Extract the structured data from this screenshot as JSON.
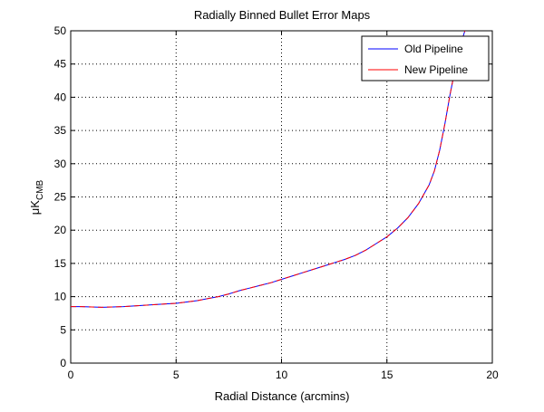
{
  "chart_data": {
    "type": "line",
    "title": "Radially Binned Bullet Error Maps",
    "xlabel": "Radial Distance (arcmins)",
    "ylabel_main": "μK",
    "ylabel_sub": "CMB",
    "xlim": [
      0,
      20
    ],
    "ylim": [
      0,
      50
    ],
    "xticks": [
      0,
      5,
      10,
      15,
      20
    ],
    "yticks": [
      0,
      5,
      10,
      15,
      20,
      25,
      30,
      35,
      40,
      45,
      50
    ],
    "grid": true,
    "grid_style": "dotted",
    "legend_position": "top-right",
    "x": [
      0,
      0.5,
      1,
      1.5,
      2,
      2.5,
      3,
      3.5,
      4,
      4.5,
      5,
      5.5,
      6,
      6.5,
      7,
      7.5,
      8,
      8.5,
      9,
      9.5,
      10,
      10.5,
      11,
      11.5,
      12,
      12.5,
      13,
      13.5,
      14,
      14.5,
      15,
      15.5,
      16,
      16.5,
      17,
      17.25,
      17.5,
      17.75,
      18,
      18.25,
      18.5,
      18.7
    ],
    "series": [
      {
        "name": "Old Pipeline",
        "color": "#0000ff",
        "values": [
          8.5,
          8.5,
          8.45,
          8.4,
          8.45,
          8.5,
          8.6,
          8.7,
          8.8,
          8.9,
          9.0,
          9.2,
          9.4,
          9.7,
          10.0,
          10.4,
          10.9,
          11.3,
          11.7,
          12.1,
          12.6,
          13.1,
          13.6,
          14.1,
          14.6,
          15.1,
          15.6,
          16.2,
          17.0,
          18.0,
          19.0,
          20.3,
          21.9,
          24.0,
          26.8,
          28.9,
          32.0,
          36.0,
          40.5,
          44.5,
          48.0,
          50.0
        ]
      },
      {
        "name": "New Pipeline",
        "color": "#ff0000",
        "values": [
          8.5,
          8.5,
          8.45,
          8.4,
          8.45,
          8.5,
          8.6,
          8.7,
          8.8,
          8.9,
          9.0,
          9.2,
          9.4,
          9.7,
          10.0,
          10.4,
          10.9,
          11.3,
          11.7,
          12.1,
          12.6,
          13.1,
          13.6,
          14.1,
          14.6,
          15.1,
          15.6,
          16.2,
          17.0,
          18.0,
          19.0,
          20.3,
          21.9,
          24.0,
          26.8,
          28.9,
          32.0,
          36.0,
          40.5,
          44.5,
          48.0,
          50.0
        ]
      }
    ]
  }
}
